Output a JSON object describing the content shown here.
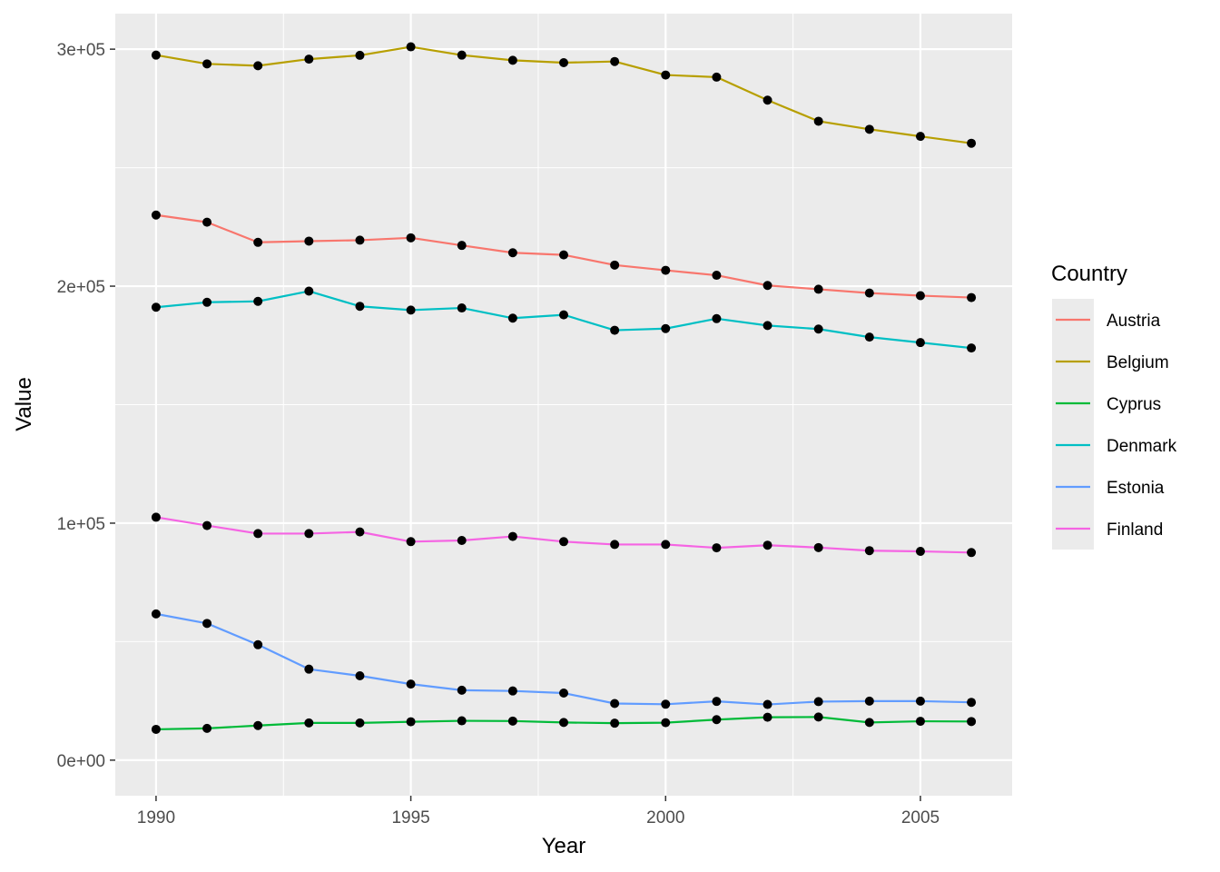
{
  "chart_data": {
    "type": "line",
    "xlabel": "Year",
    "ylabel": "Value",
    "xlim": [
      1989.2,
      2006.8
    ],
    "ylim": [
      -15000,
      315000
    ],
    "x_ticks": [
      1990,
      1995,
      2000,
      2005
    ],
    "x_tick_labels": [
      "1990",
      "1995",
      "2000",
      "2005"
    ],
    "y_ticks": [
      0,
      100000,
      200000,
      300000
    ],
    "y_tick_labels": [
      "0e+00",
      "1e+05",
      "2e+05",
      "3e+05"
    ],
    "grid": true,
    "points": true,
    "legend": {
      "title": "Country",
      "position": "right"
    },
    "x": [
      1990,
      1991,
      1992,
      1993,
      1994,
      1995,
      1996,
      1997,
      1998,
      1999,
      2000,
      2001,
      2002,
      2003,
      2004,
      2005,
      2006
    ],
    "series": [
      {
        "name": "Austria",
        "color": "#F8766D",
        "values": [
          230000,
          227000,
          218500,
          219000,
          219400,
          220400,
          217200,
          214100,
          213200,
          208900,
          206700,
          204600,
          200300,
          198700,
          197100,
          196000,
          195200
        ]
      },
      {
        "name": "Belgium",
        "color": "#B79F00",
        "values": [
          297500,
          293800,
          293000,
          295800,
          297400,
          301000,
          297500,
          295300,
          294300,
          294800,
          289100,
          288200,
          278500,
          269600,
          266200,
          263200,
          260300
        ]
      },
      {
        "name": "Cyprus",
        "color": "#00BA38",
        "values": [
          13000,
          13400,
          14600,
          15700,
          15700,
          16200,
          16600,
          16500,
          15900,
          15600,
          15800,
          17100,
          18100,
          18200,
          15900,
          16400,
          16300
        ]
      },
      {
        "name": "Denmark",
        "color": "#00BFC4",
        "values": [
          191100,
          193200,
          193600,
          197900,
          191500,
          189900,
          190800,
          186500,
          187900,
          181400,
          182100,
          186300,
          183400,
          181900,
          178500,
          176200,
          173900
        ]
      },
      {
        "name": "Estonia",
        "color": "#619CFF",
        "values": [
          61700,
          57700,
          48700,
          38400,
          35600,
          32100,
          29500,
          29200,
          28300,
          23900,
          23600,
          24800,
          23500,
          24700,
          24900,
          24900,
          24400
        ]
      },
      {
        "name": "Finland",
        "color": "#F564E3",
        "values": [
          102500,
          99000,
          95600,
          95600,
          96300,
          92200,
          92700,
          94400,
          92200,
          91000,
          91000,
          89600,
          90700,
          89700,
          88400,
          88100,
          87600
        ]
      }
    ]
  }
}
